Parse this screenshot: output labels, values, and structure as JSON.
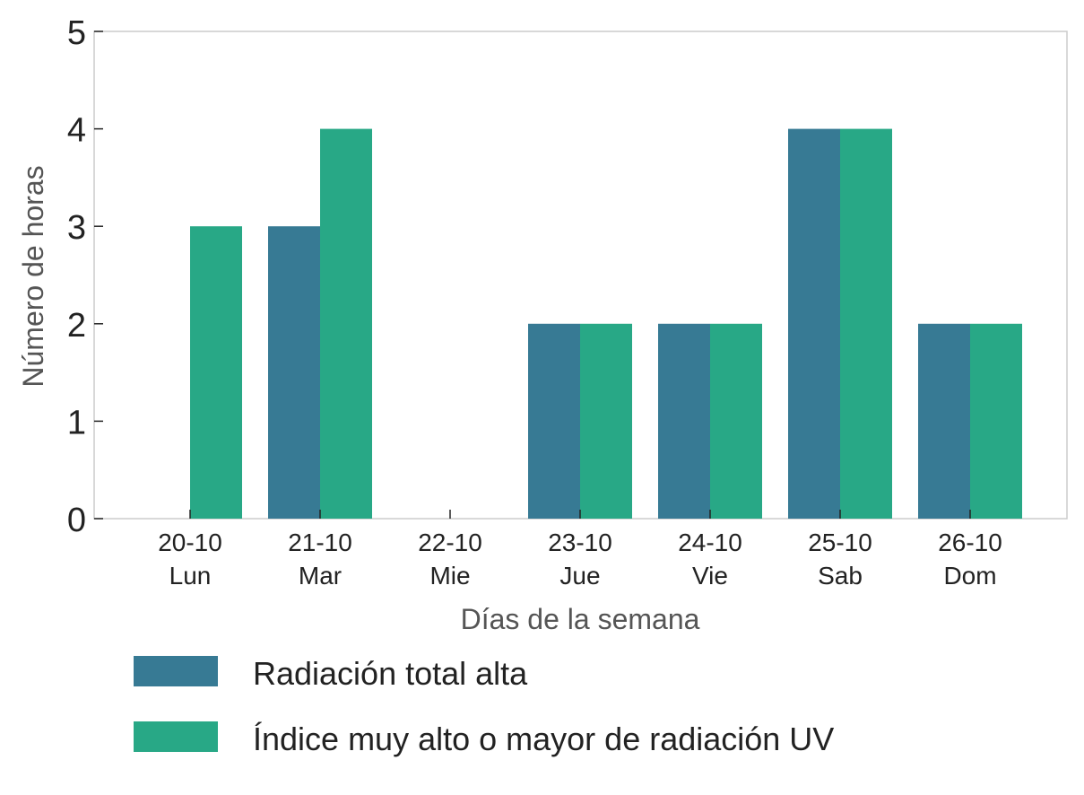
{
  "chart_data": {
    "type": "bar",
    "categories": [
      {
        "date": "20-10",
        "day": "Lun"
      },
      {
        "date": "21-10",
        "day": "Mar"
      },
      {
        "date": "22-10",
        "day": "Mie"
      },
      {
        "date": "23-10",
        "day": "Jue"
      },
      {
        "date": "24-10",
        "day": "Vie"
      },
      {
        "date": "25-10",
        "day": "Sab"
      },
      {
        "date": "26-10",
        "day": "Dom"
      }
    ],
    "series": [
      {
        "name": "Radiación total alta",
        "color": "#377a94",
        "values": [
          0,
          3,
          0,
          2,
          2,
          4,
          2
        ]
      },
      {
        "name": "Índice muy alto o mayor de radiación UV",
        "color": "#28a886",
        "values": [
          3,
          4,
          0,
          2,
          2,
          4,
          2
        ]
      }
    ],
    "xlabel": "Días de la semana",
    "ylabel": "Número de horas",
    "ylim": [
      0,
      5
    ],
    "yticks": [
      0,
      1,
      2,
      3,
      4,
      5
    ],
    "grid": false,
    "legend": "bottom-left"
  }
}
